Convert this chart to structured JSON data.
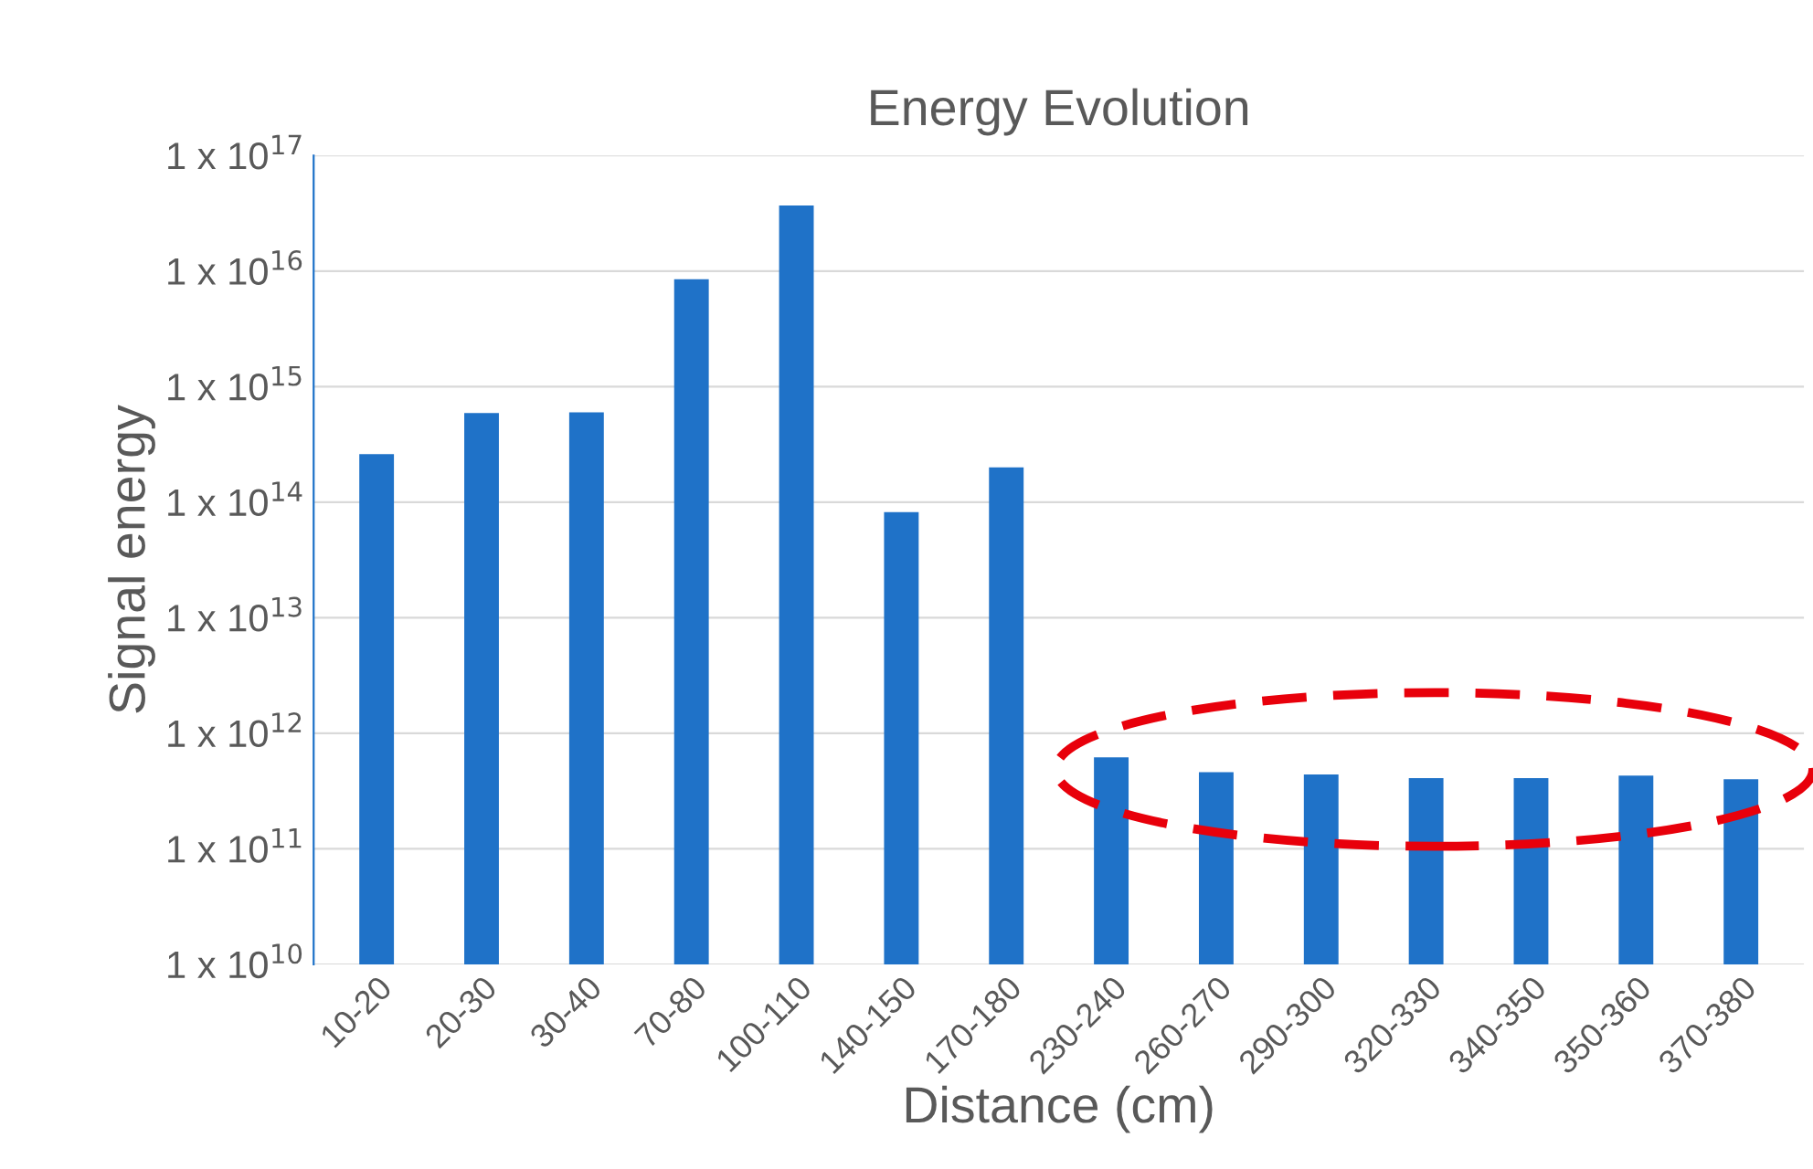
{
  "chart_data": {
    "type": "bar",
    "title": "Energy Evolution",
    "xlabel": "Distance (cm)",
    "ylabel": "Signal energy",
    "categories": [
      "10-20",
      "20-30",
      "30-40",
      "70-80",
      "100-110",
      "140-150",
      "170-180",
      "230-240",
      "260-270",
      "290-300",
      "320-330",
      "340-350",
      "350-360",
      "370-380"
    ],
    "values": [
      260000000000000.0,
      590000000000000.0,
      600000000000000.0,
      8500000000000000.0,
      3.7e+16,
      82000000000000.0,
      200000000000000.0,
      620000000000.0,
      460000000000.0,
      440000000000.0,
      410000000000.0,
      410000000000.0,
      430000000000.0,
      400000000000.0
    ],
    "color": "#1f72c8",
    "log": "y",
    "ylim": [
      10000000000.0,
      1e+17
    ],
    "yticks": [
      {
        "value": 10000000000.0,
        "label": "1 x 10$^{10}$"
      },
      {
        "value": 100000000000.0,
        "label": "1 x 10$^{11}$"
      },
      {
        "value": 1000000000000.0,
        "label": "1 x 10$^{12}$"
      },
      {
        "value": 10000000000000.0,
        "label": "1 x 10$^{13}$"
      },
      {
        "value": 100000000000000.0,
        "label": "1 x 10$^{14}$"
      },
      {
        "value": 1000000000000000.0,
        "label": "1 x 10$^{15}$"
      },
      {
        "value": 1e+16,
        "label": "1 x 10$^{16}$"
      },
      {
        "value": 1e+17,
        "label": "1 x 10$^{17}$"
      }
    ],
    "grid": "y"
  }
}
